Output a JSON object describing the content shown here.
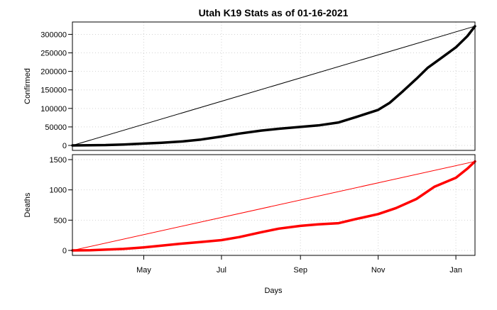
{
  "chart_data": {
    "title": "Utah K19 Stats as of 01-16-2021",
    "xlabel": "Days",
    "x_range": [
      "2020-03-06",
      "2021-01-16"
    ],
    "x_ticks": [
      {
        "date": "2020-05-01",
        "label": "May"
      },
      {
        "date": "2020-07-01",
        "label": "Jul"
      },
      {
        "date": "2020-09-01",
        "label": "Sep"
      },
      {
        "date": "2020-11-01",
        "label": "Nov"
      },
      {
        "date": "2021-01-01",
        "label": "Jan"
      }
    ],
    "grid": true,
    "panels": [
      {
        "type": "line",
        "ylabel": "Confirmed",
        "ylim": [
          0,
          320000
        ],
        "y_ticks": [
          0,
          50000,
          100000,
          150000,
          200000,
          250000,
          300000
        ],
        "color": "#000000",
        "reference_line": {
          "from": [
            "2020-03-06",
            0
          ],
          "to": [
            "2021-01-16",
            322000
          ],
          "color": "#000000"
        },
        "series": {
          "x": [
            "2020-03-06",
            "2020-03-20",
            "2020-04-01",
            "2020-04-15",
            "2020-05-01",
            "2020-05-15",
            "2020-06-01",
            "2020-06-15",
            "2020-07-01",
            "2020-07-15",
            "2020-08-01",
            "2020-08-15",
            "2020-09-01",
            "2020-09-15",
            "2020-10-01",
            "2020-10-15",
            "2020-11-01",
            "2020-11-10",
            "2020-11-20",
            "2020-12-01",
            "2020-12-10",
            "2020-12-20",
            "2021-01-01",
            "2021-01-10",
            "2021-01-16"
          ],
          "values": [
            0,
            500,
            1000,
            2500,
            5000,
            7000,
            11000,
            16000,
            24000,
            32000,
            40000,
            45000,
            50000,
            54000,
            62000,
            77000,
            96000,
            115000,
            145000,
            180000,
            210000,
            235000,
            265000,
            295000,
            322000
          ]
        }
      },
      {
        "type": "line",
        "ylabel": "Deaths",
        "ylim": [
          0,
          1500
        ],
        "y_ticks": [
          0,
          500,
          1000,
          1500
        ],
        "color": "#ff0000",
        "reference_line": {
          "from": [
            "2020-03-06",
            0
          ],
          "to": [
            "2021-01-16",
            1470
          ],
          "color": "#ff0000"
        },
        "series": {
          "x": [
            "2020-03-06",
            "2020-03-20",
            "2020-04-01",
            "2020-04-15",
            "2020-05-01",
            "2020-05-15",
            "2020-06-01",
            "2020-06-15",
            "2020-07-01",
            "2020-07-15",
            "2020-08-01",
            "2020-08-15",
            "2020-09-01",
            "2020-09-15",
            "2020-10-01",
            "2020-10-15",
            "2020-11-01",
            "2020-11-15",
            "2020-12-01",
            "2020-12-15",
            "2021-01-01",
            "2021-01-10",
            "2021-01-16"
          ],
          "values": [
            0,
            2,
            13,
            25,
            50,
            80,
            115,
            140,
            170,
            220,
            300,
            360,
            405,
            430,
            450,
            520,
            600,
            700,
            850,
            1050,
            1200,
            1350,
            1470
          ]
        }
      }
    ]
  }
}
